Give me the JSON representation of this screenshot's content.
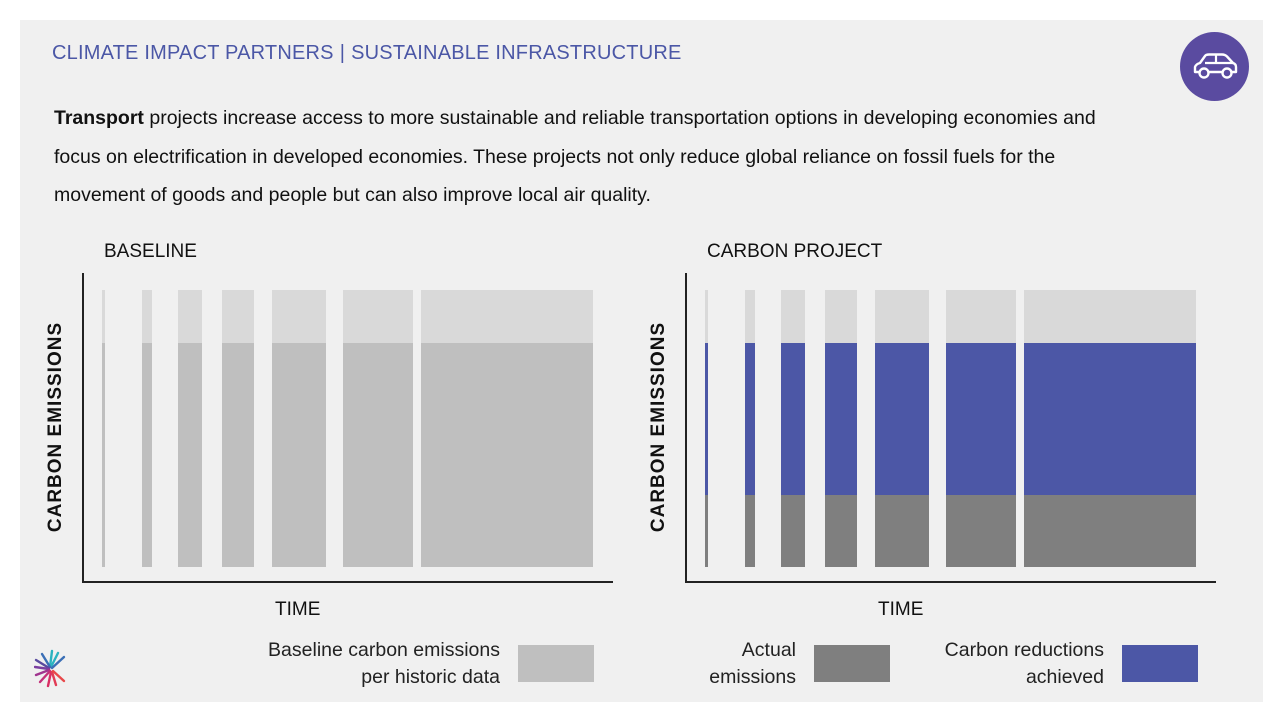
{
  "header": {
    "org": "CLIMATE IMPACT PARTNERS",
    "separator": "|",
    "section": "SUSTAINABLE INFRASTRUCTURE"
  },
  "icon": {
    "name": "car-icon",
    "badge_color": "#5a4ba0"
  },
  "intro": {
    "bold": "Transport",
    "text": " projects increase access to more sustainable and reliable transportation options in developing economies and focus on electrification in developed economies. These projects not only reduce global reliance on fossil fuels for the movement of goods and people but can also improve local air quality."
  },
  "colors": {
    "baseline_top": "#d9d9d9",
    "baseline_fill": "#bfbfbf",
    "reduction": "#4c57a6",
    "actual": "#7f7f7f"
  },
  "panels": {
    "baseline": {
      "title": "BASELINE",
      "y_label": "CARBON EMISSIONS",
      "x_label": "TIME"
    },
    "project": {
      "title": "CARBON PROJECT",
      "y_label": "CARBON EMISSIONS",
      "x_label": "TIME"
    }
  },
  "legend": {
    "baseline_line1": "Baseline carbon emissions",
    "baseline_line2": "per historic data",
    "actual_line1": "Actual",
    "actual_line2": "emissions",
    "reductions_line1": "Carbon reductions",
    "reductions_line2": "achieved"
  },
  "logo": {
    "name": "climate-impact-partners-logo"
  }
}
